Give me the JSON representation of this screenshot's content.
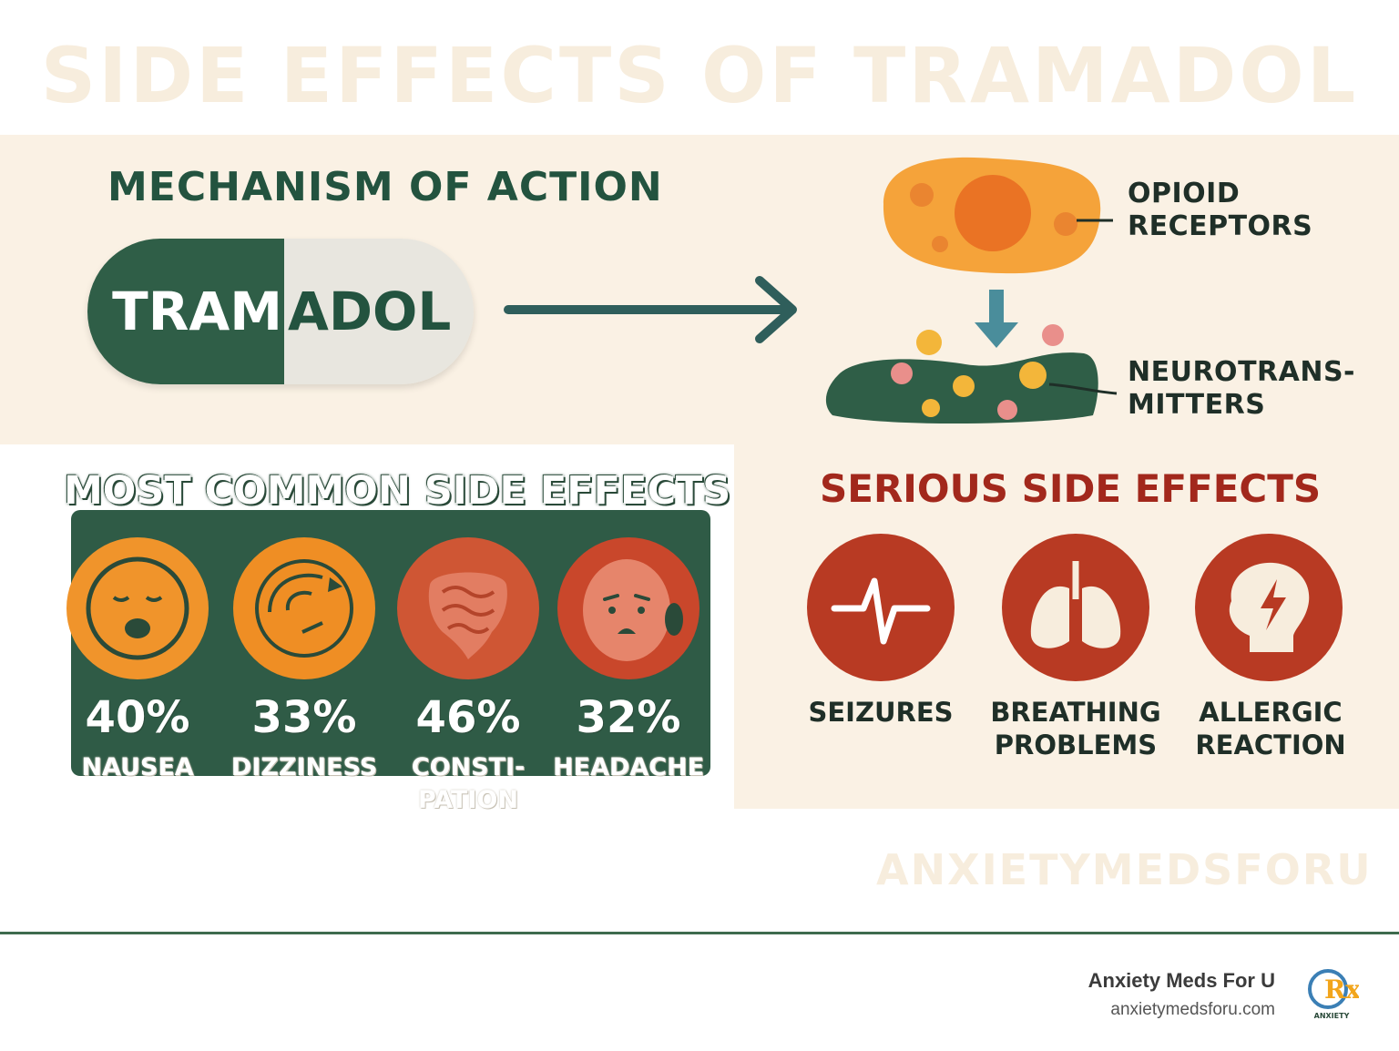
{
  "title": "SIDE EFFECTS OF TRAMADOL",
  "mechanism": {
    "heading": "MECHANISM OF ACTION",
    "pill_left": "TRAM",
    "pill_right": "ADOL",
    "opioid_label_1": "OPIOID",
    "opioid_label_2": "RECEPTORS",
    "neuro_label_1": "NEUROTRANS-",
    "neuro_label_2": "MITTERS"
  },
  "common": {
    "heading": "MOST COMMON SIDE EFFECTS",
    "items": [
      {
        "percent": "40%",
        "label": "NAUSEA",
        "label2": "",
        "icon": "nausea-face-icon",
        "color": "#f0942b"
      },
      {
        "percent": "33%",
        "label": "DIZZINESS",
        "label2": "",
        "icon": "dizzy-face-icon",
        "color": "#ef8e24"
      },
      {
        "percent": "46%",
        "label": "CONSTI-",
        "label2": "PATION",
        "icon": "intestine-icon",
        "color": "#cf5634"
      },
      {
        "percent": "32%",
        "label": "HEADACHE",
        "label2": "",
        "icon": "headache-face-icon",
        "color": "#c9472b"
      }
    ]
  },
  "serious": {
    "heading": "SERIOUS SIDE EFFECTS",
    "items": [
      {
        "label": "SEIZURES",
        "label2": "",
        "icon": "heartbeat-icon"
      },
      {
        "label": "BREATHING",
        "label2": "PROBLEMS",
        "icon": "lungs-icon"
      },
      {
        "label": "ALLERGIC",
        "label2": "REACTION",
        "icon": "head-bolt-icon"
      }
    ]
  },
  "watermark": "ANXIETYMEDSFORU",
  "footer": {
    "brand": "Anxiety Meds For U",
    "url": "anxietymedsforu.com",
    "logo_text": "Rx",
    "logo_sub": "ANXIETY"
  },
  "colors": {
    "green": "#2f5b46",
    "cream": "#faf1e4",
    "orange": "#f0942b",
    "red": "#b83a23"
  }
}
